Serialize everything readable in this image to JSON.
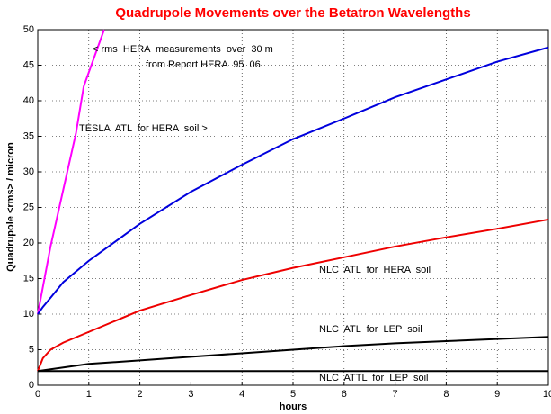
{
  "chart_data": {
    "type": "line",
    "title": "Quadrupole Movements over the Betatron Wavelengths",
    "xlabel": "hours",
    "ylabel": "Quadrupole <rms> / micron",
    "xlim": [
      0,
      10
    ],
    "ylim": [
      0,
      50
    ],
    "xticks": [
      0,
      1,
      2,
      3,
      4,
      5,
      6,
      7,
      8,
      9,
      10
    ],
    "yticks": [
      0,
      5,
      10,
      15,
      20,
      25,
      30,
      35,
      40,
      45,
      50
    ],
    "grid": true,
    "series": [
      {
        "color": "#ff00ff",
        "x": [
          0,
          0.25,
          0.5,
          0.75,
          0.9,
          1.3
        ],
        "values": [
          10,
          19.5,
          27.5,
          35.5,
          42,
          50
        ]
      },
      {
        "color": "#0000dd",
        "x": [
          0,
          0.1,
          0.25,
          0.5,
          1,
          2,
          3,
          4,
          5,
          6,
          7,
          8,
          9,
          10
        ],
        "values": [
          10,
          11,
          12.3,
          14.5,
          17.5,
          22.7,
          27.2,
          31,
          34.6,
          37.5,
          40.5,
          43,
          45.5,
          47.5
        ]
      },
      {
        "color": "#ee0000",
        "x": [
          0,
          0.1,
          0.25,
          0.5,
          1,
          2,
          3,
          4,
          5,
          6,
          7,
          8,
          9,
          10
        ],
        "values": [
          2,
          3.8,
          5,
          6,
          7.5,
          10.5,
          12.7,
          14.8,
          16.5,
          18,
          19.5,
          20.8,
          22,
          23.3
        ]
      },
      {
        "color": "#000000",
        "x": [
          0,
          1,
          2,
          3,
          4,
          5,
          6,
          7,
          8,
          9,
          10
        ],
        "values": [
          2,
          3,
          3.5,
          4,
          4.5,
          5,
          5.5,
          5.9,
          6.2,
          6.5,
          6.8
        ]
      },
      {
        "color": "#000000",
        "x": [
          0,
          10
        ],
        "values": [
          2,
          2
        ]
      }
    ],
    "annotations": [
      "< rms  HERA  measurements  over  30 m",
      "from Report HERA  95  06",
      "TESLA  ATL  for HERA  soil >",
      "NLC  ATL  for  HERA  soil",
      "NLC  ATL  for  LEP  soil",
      "NLC  ATTL  for  LEP  soil"
    ]
  }
}
